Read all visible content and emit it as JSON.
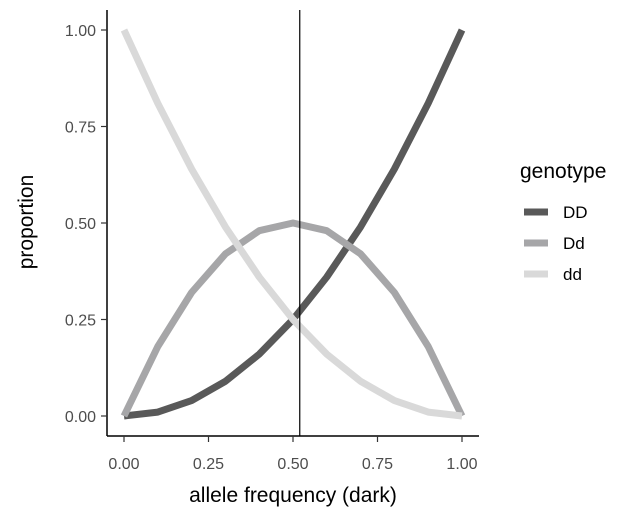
{
  "chart_data": {
    "type": "line",
    "xlabel": "allele frequency (dark)",
    "ylabel": "proportion",
    "xlim": [
      0,
      1
    ],
    "ylim": [
      0,
      1
    ],
    "x_ticks": [
      "0.00",
      "0.25",
      "0.50",
      "0.75",
      "1.00"
    ],
    "y_ticks": [
      "0.00",
      "0.25",
      "0.50",
      "0.75",
      "1.00"
    ],
    "grid": false,
    "legend": {
      "title": "genotype",
      "placement": "right"
    },
    "x": [
      0.0,
      0.1,
      0.2,
      0.3,
      0.4,
      0.5,
      0.6,
      0.7,
      0.8,
      0.9,
      1.0
    ],
    "series": [
      {
        "name": "DD",
        "color": "#595959",
        "values": [
          0.0,
          0.01,
          0.04,
          0.09,
          0.16,
          0.25,
          0.36,
          0.49,
          0.64,
          0.81,
          1.0
        ]
      },
      {
        "name": "Dd",
        "color": "#a6a6a8",
        "values": [
          0.0,
          0.18,
          0.32,
          0.42,
          0.48,
          0.5,
          0.48,
          0.42,
          0.32,
          0.18,
          0.0
        ]
      },
      {
        "name": "dd",
        "color": "#d9d9d9",
        "values": [
          1.0,
          0.81,
          0.64,
          0.49,
          0.36,
          0.25,
          0.16,
          0.09,
          0.04,
          0.01,
          0.0
        ]
      }
    ],
    "vline": {
      "x": 0.52,
      "color": "#000000"
    }
  }
}
